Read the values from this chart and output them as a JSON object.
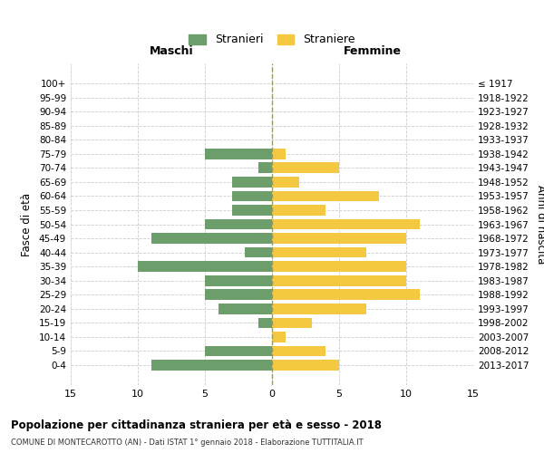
{
  "age_groups": [
    "100+",
    "95-99",
    "90-94",
    "85-89",
    "80-84",
    "75-79",
    "70-74",
    "65-69",
    "60-64",
    "55-59",
    "50-54",
    "45-49",
    "40-44",
    "35-39",
    "30-34",
    "25-29",
    "20-24",
    "15-19",
    "10-14",
    "5-9",
    "0-4"
  ],
  "birth_years": [
    "≤ 1917",
    "1918-1922",
    "1923-1927",
    "1928-1932",
    "1933-1937",
    "1938-1942",
    "1943-1947",
    "1948-1952",
    "1953-1957",
    "1958-1962",
    "1963-1967",
    "1968-1972",
    "1973-1977",
    "1978-1982",
    "1983-1987",
    "1988-1992",
    "1993-1997",
    "1998-2002",
    "2003-2007",
    "2008-2012",
    "2013-2017"
  ],
  "males": [
    0,
    0,
    0,
    0,
    0,
    5,
    1,
    3,
    3,
    3,
    5,
    9,
    2,
    10,
    5,
    5,
    4,
    1,
    0,
    5,
    9
  ],
  "females": [
    0,
    0,
    0,
    0,
    0,
    1,
    5,
    2,
    8,
    4,
    11,
    10,
    7,
    10,
    10,
    11,
    7,
    3,
    1,
    4,
    5
  ],
  "male_color": "#6b9e6b",
  "female_color": "#f5c842",
  "grid_color": "#cccccc",
  "center_line_color": "#999966",
  "title": "Popolazione per cittadinanza straniera per età e sesso - 2018",
  "subtitle": "COMUNE DI MONTECAROTTO (AN) - Dati ISTAT 1° gennaio 2018 - Elaborazione TUTTITALIA.IT",
  "xlabel_left": "Maschi",
  "xlabel_right": "Femmine",
  "ylabel_left": "Fasce di età",
  "ylabel_right": "Anni di nascita",
  "legend_male": "Stranieri",
  "legend_female": "Straniere",
  "xlim": 15,
  "background_color": "#ffffff",
  "bar_height": 0.75
}
